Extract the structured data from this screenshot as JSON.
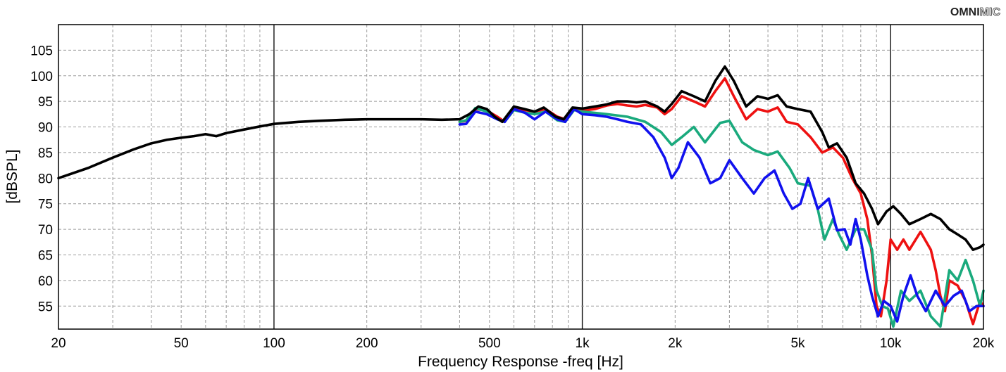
{
  "brand": {
    "bold": "OMNI",
    "outline": "MIC"
  },
  "chart_data": {
    "type": "line",
    "title": "",
    "xlabel": "Frequency Response -freq [Hz]",
    "ylabel": "[dBSPL]",
    "x_scale": "log",
    "xlim": [
      20,
      20000
    ],
    "ylim": [
      50.5,
      110
    ],
    "grid": true,
    "x_ticks": [
      {
        "v": 20,
        "label": "20"
      },
      {
        "v": 50,
        "label": "50"
      },
      {
        "v": 100,
        "label": "100"
      },
      {
        "v": 200,
        "label": "200"
      },
      {
        "v": 500,
        "label": "500"
      },
      {
        "v": 1000,
        "label": "1k"
      },
      {
        "v": 2000,
        "label": "2k"
      },
      {
        "v": 5000,
        "label": "5k"
      },
      {
        "v": 10000,
        "label": "10k"
      },
      {
        "v": 20000,
        "label": "20k"
      }
    ],
    "y_ticks": [
      55,
      60,
      65,
      70,
      75,
      80,
      85,
      90,
      95,
      100,
      105
    ],
    "series": [
      {
        "color": "#000000",
        "points": [
          [
            20,
            80
          ],
          [
            25,
            82
          ],
          [
            30,
            84
          ],
          [
            35,
            85.6
          ],
          [
            40,
            86.8
          ],
          [
            45,
            87.5
          ],
          [
            50,
            87.9
          ],
          [
            55,
            88.2
          ],
          [
            60,
            88.6
          ],
          [
            65,
            88.2
          ],
          [
            70,
            88.8
          ],
          [
            80,
            89.5
          ],
          [
            90,
            90.1
          ],
          [
            100,
            90.6
          ],
          [
            120,
            91
          ],
          [
            140,
            91.2
          ],
          [
            170,
            91.4
          ],
          [
            200,
            91.5
          ],
          [
            250,
            91.5
          ],
          [
            300,
            91.5
          ],
          [
            350,
            91.4
          ],
          [
            400,
            91.5
          ],
          [
            430,
            92.5
          ],
          [
            460,
            94
          ],
          [
            490,
            93.5
          ],
          [
            520,
            92
          ],
          [
            550,
            91
          ],
          [
            600,
            94
          ],
          [
            650,
            93.5
          ],
          [
            700,
            93
          ],
          [
            750,
            93.8
          ],
          [
            820,
            92
          ],
          [
            870,
            91.5
          ],
          [
            930,
            93.8
          ],
          [
            1000,
            93.6
          ],
          [
            1100,
            94
          ],
          [
            1200,
            94.4
          ],
          [
            1300,
            95
          ],
          [
            1400,
            95
          ],
          [
            1500,
            94.8
          ],
          [
            1600,
            95
          ],
          [
            1750,
            94
          ],
          [
            1850,
            93
          ],
          [
            1950,
            94.5
          ],
          [
            2100,
            97
          ],
          [
            2300,
            96
          ],
          [
            2500,
            95
          ],
          [
            2700,
            99
          ],
          [
            2900,
            101.8
          ],
          [
            3100,
            99
          ],
          [
            3400,
            94
          ],
          [
            3700,
            96
          ],
          [
            4000,
            95.5
          ],
          [
            4300,
            96.2
          ],
          [
            4600,
            94
          ],
          [
            5000,
            93.5
          ],
          [
            5500,
            93
          ],
          [
            6000,
            89
          ],
          [
            6300,
            86
          ],
          [
            6700,
            86.8
          ],
          [
            7200,
            84
          ],
          [
            7700,
            79
          ],
          [
            8200,
            77
          ],
          [
            8700,
            74
          ],
          [
            9100,
            71
          ],
          [
            9700,
            73.5
          ],
          [
            10200,
            74.5
          ],
          [
            10800,
            73
          ],
          [
            11500,
            71
          ],
          [
            12500,
            72
          ],
          [
            13500,
            73
          ],
          [
            14500,
            72
          ],
          [
            15500,
            70
          ],
          [
            16500,
            69
          ],
          [
            17500,
            68
          ],
          [
            18500,
            66
          ],
          [
            19500,
            66.5
          ],
          [
            20000,
            67
          ]
        ]
      },
      {
        "color": "#ee1111",
        "points": [
          [
            400,
            91
          ],
          [
            420,
            91.2
          ],
          [
            450,
            93.5
          ],
          [
            490,
            93.2
          ],
          [
            530,
            92
          ],
          [
            560,
            91
          ],
          [
            600,
            93.8
          ],
          [
            650,
            93.3
          ],
          [
            700,
            93
          ],
          [
            760,
            93.5
          ],
          [
            830,
            92
          ],
          [
            880,
            91.5
          ],
          [
            940,
            93.3
          ],
          [
            1000,
            93.2
          ],
          [
            1100,
            93.5
          ],
          [
            1200,
            94.2
          ],
          [
            1300,
            94.5
          ],
          [
            1400,
            94.2
          ],
          [
            1500,
            94
          ],
          [
            1600,
            94.3
          ],
          [
            1750,
            93.8
          ],
          [
            1850,
            92.5
          ],
          [
            1950,
            93.5
          ],
          [
            2100,
            96
          ],
          [
            2300,
            95
          ],
          [
            2500,
            94
          ],
          [
            2700,
            97
          ],
          [
            2900,
            99.5
          ],
          [
            3100,
            96
          ],
          [
            3400,
            91.5
          ],
          [
            3700,
            93.5
          ],
          [
            4000,
            93
          ],
          [
            4300,
            93.8
          ],
          [
            4600,
            91
          ],
          [
            5000,
            90.5
          ],
          [
            5500,
            88
          ],
          [
            6000,
            85
          ],
          [
            6500,
            86
          ],
          [
            7000,
            84
          ],
          [
            7500,
            80
          ],
          [
            8000,
            77
          ],
          [
            8400,
            72
          ],
          [
            8700,
            65
          ],
          [
            9000,
            55
          ],
          [
            9300,
            53
          ],
          [
            9700,
            60
          ],
          [
            10000,
            68
          ],
          [
            10500,
            66
          ],
          [
            11000,
            68
          ],
          [
            11500,
            66
          ],
          [
            12500,
            69.5
          ],
          [
            13500,
            66
          ],
          [
            14000,
            62
          ],
          [
            14500,
            57
          ],
          [
            15000,
            54
          ],
          [
            15500,
            60
          ],
          [
            16500,
            59
          ],
          [
            17500,
            56
          ],
          [
            18500,
            51.5
          ],
          [
            19500,
            56
          ],
          [
            20000,
            55
          ]
        ]
      },
      {
        "color": "#1aaa7d",
        "points": [
          [
            400,
            91
          ],
          [
            420,
            91.3
          ],
          [
            450,
            93.7
          ],
          [
            490,
            93
          ],
          [
            530,
            91.5
          ],
          [
            560,
            91
          ],
          [
            600,
            93.3
          ],
          [
            650,
            92.8
          ],
          [
            700,
            92.5
          ],
          [
            760,
            93
          ],
          [
            830,
            91.3
          ],
          [
            880,
            91
          ],
          [
            940,
            93.3
          ],
          [
            1000,
            93
          ],
          [
            1200,
            92.5
          ],
          [
            1400,
            92
          ],
          [
            1600,
            91
          ],
          [
            1800,
            89
          ],
          [
            1950,
            86.5
          ],
          [
            2100,
            88
          ],
          [
            2300,
            90
          ],
          [
            2500,
            87
          ],
          [
            2800,
            90.8
          ],
          [
            3000,
            91.2
          ],
          [
            3300,
            87
          ],
          [
            3600,
            85.5
          ],
          [
            4000,
            84.5
          ],
          [
            4300,
            85.2
          ],
          [
            4700,
            82
          ],
          [
            5000,
            79
          ],
          [
            5500,
            78.5
          ],
          [
            5800,
            74
          ],
          [
            6100,
            68
          ],
          [
            6500,
            72
          ],
          [
            6800,
            69
          ],
          [
            7200,
            66
          ],
          [
            7700,
            70
          ],
          [
            8200,
            70
          ],
          [
            8700,
            66
          ],
          [
            9000,
            58
          ],
          [
            9400,
            55
          ],
          [
            9800,
            54.5
          ],
          [
            10200,
            51
          ],
          [
            10800,
            58
          ],
          [
            11500,
            56
          ],
          [
            12500,
            58
          ],
          [
            13500,
            53
          ],
          [
            14500,
            51
          ],
          [
            15500,
            62
          ],
          [
            16500,
            60
          ],
          [
            17500,
            64
          ],
          [
            18500,
            60
          ],
          [
            19500,
            55
          ],
          [
            20000,
            58
          ]
        ]
      },
      {
        "color": "#1111ee",
        "points": [
          [
            400,
            90.5
          ],
          [
            420,
            90.6
          ],
          [
            450,
            93
          ],
          [
            490,
            92.5
          ],
          [
            530,
            91.5
          ],
          [
            560,
            91
          ],
          [
            600,
            93.5
          ],
          [
            650,
            92.8
          ],
          [
            700,
            91.5
          ],
          [
            760,
            93
          ],
          [
            830,
            91.5
          ],
          [
            880,
            91
          ],
          [
            940,
            93.5
          ],
          [
            1000,
            92.5
          ],
          [
            1100,
            92.3
          ],
          [
            1200,
            92
          ],
          [
            1300,
            91.5
          ],
          [
            1400,
            91
          ],
          [
            1550,
            90.5
          ],
          [
            1700,
            88
          ],
          [
            1850,
            84
          ],
          [
            1950,
            80
          ],
          [
            2050,
            82
          ],
          [
            2200,
            87
          ],
          [
            2400,
            84
          ],
          [
            2600,
            79
          ],
          [
            2800,
            80
          ],
          [
            3000,
            83.5
          ],
          [
            3300,
            80
          ],
          [
            3600,
            77
          ],
          [
            3900,
            80
          ],
          [
            4200,
            81.5
          ],
          [
            4500,
            77
          ],
          [
            4800,
            74
          ],
          [
            5100,
            75
          ],
          [
            5400,
            80
          ],
          [
            5800,
            74
          ],
          [
            6300,
            76
          ],
          [
            6700,
            69.8
          ],
          [
            7100,
            70
          ],
          [
            7400,
            67
          ],
          [
            7700,
            72
          ],
          [
            8000,
            68
          ],
          [
            8400,
            61
          ],
          [
            8700,
            57
          ],
          [
            9100,
            53
          ],
          [
            9500,
            56
          ],
          [
            10000,
            55
          ],
          [
            10500,
            52
          ],
          [
            11000,
            57
          ],
          [
            11600,
            61
          ],
          [
            12200,
            57
          ],
          [
            13000,
            54
          ],
          [
            14000,
            58
          ],
          [
            15000,
            55
          ],
          [
            16000,
            57
          ],
          [
            17000,
            58
          ],
          [
            18000,
            54
          ],
          [
            19000,
            55
          ],
          [
            20000,
            55
          ]
        ]
      }
    ]
  }
}
